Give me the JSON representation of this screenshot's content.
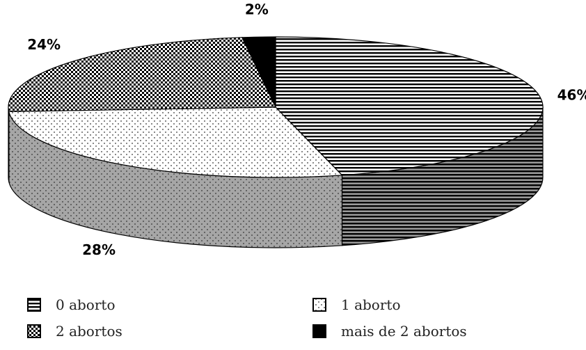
{
  "chart_data": {
    "type": "pie",
    "is_3d": true,
    "title": "",
    "categories": [
      "0 aborto",
      "1 aborto",
      "2 abortos",
      "mais de 2 abortos"
    ],
    "values": [
      46,
      28,
      24,
      2
    ],
    "value_labels": [
      "46%",
      "28%",
      "24%",
      "2%"
    ],
    "patterns": [
      "horizontal-lines",
      "dots",
      "checkerboard",
      "solid-black"
    ],
    "legend_position": "bottom"
  }
}
